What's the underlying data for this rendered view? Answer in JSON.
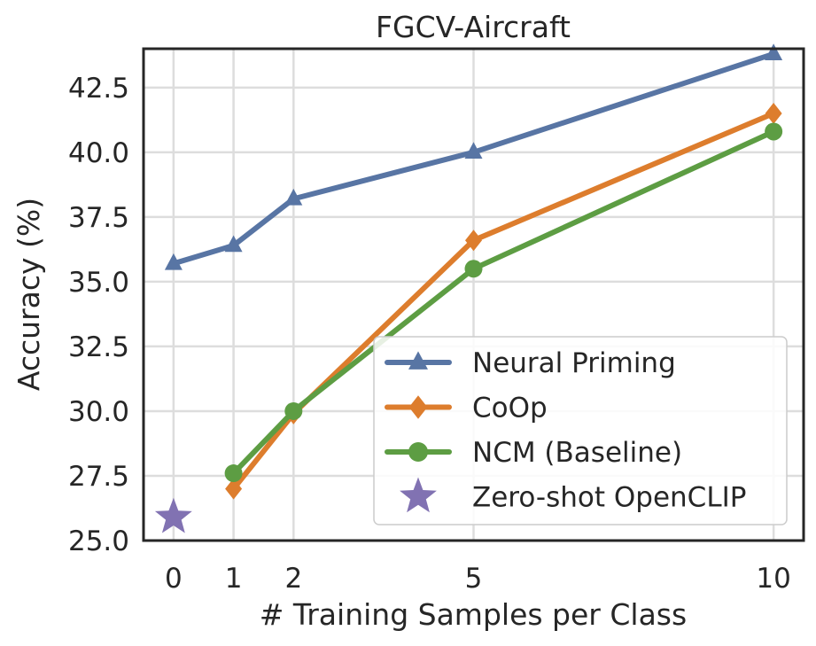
{
  "chart_data": {
    "type": "line",
    "title": "FGCV-Aircraft",
    "xlabel": "# Training Samples per Class",
    "ylabel": "Accuracy (%)",
    "x_ticks": [
      0,
      1,
      2,
      5,
      10
    ],
    "y_ticks": [
      25.0,
      27.5,
      30.0,
      32.5,
      35.0,
      37.5,
      40.0,
      42.5
    ],
    "y_tick_labels": [
      "25.0",
      "27.5",
      "30.0",
      "32.5",
      "35.0",
      "37.5",
      "40.0",
      "42.5"
    ],
    "xlim": [
      -0.5,
      10.5
    ],
    "ylim": [
      25.0,
      44.0
    ],
    "grid": true,
    "legend_position": "lower-right",
    "series": [
      {
        "name": "Neural Priming",
        "color": "#5875a4",
        "marker": "triangle",
        "x": [
          0,
          1,
          2,
          5,
          10
        ],
        "y": [
          35.7,
          36.4,
          38.2,
          40.0,
          43.8
        ]
      },
      {
        "name": "CoOp",
        "color": "#dd7d2d",
        "marker": "diamond",
        "x": [
          1,
          2,
          5,
          10
        ],
        "y": [
          27.0,
          29.9,
          36.6,
          41.5
        ]
      },
      {
        "name": "NCM (Baseline)",
        "color": "#5d9d43",
        "marker": "circle",
        "x": [
          1,
          2,
          5,
          10
        ],
        "y": [
          27.6,
          30.0,
          35.5,
          40.8
        ]
      },
      {
        "name": "Zero-shot OpenCLIP",
        "color": "#8172b2",
        "marker": "star",
        "x": [
          0
        ],
        "y": [
          25.9
        ]
      }
    ]
  }
}
